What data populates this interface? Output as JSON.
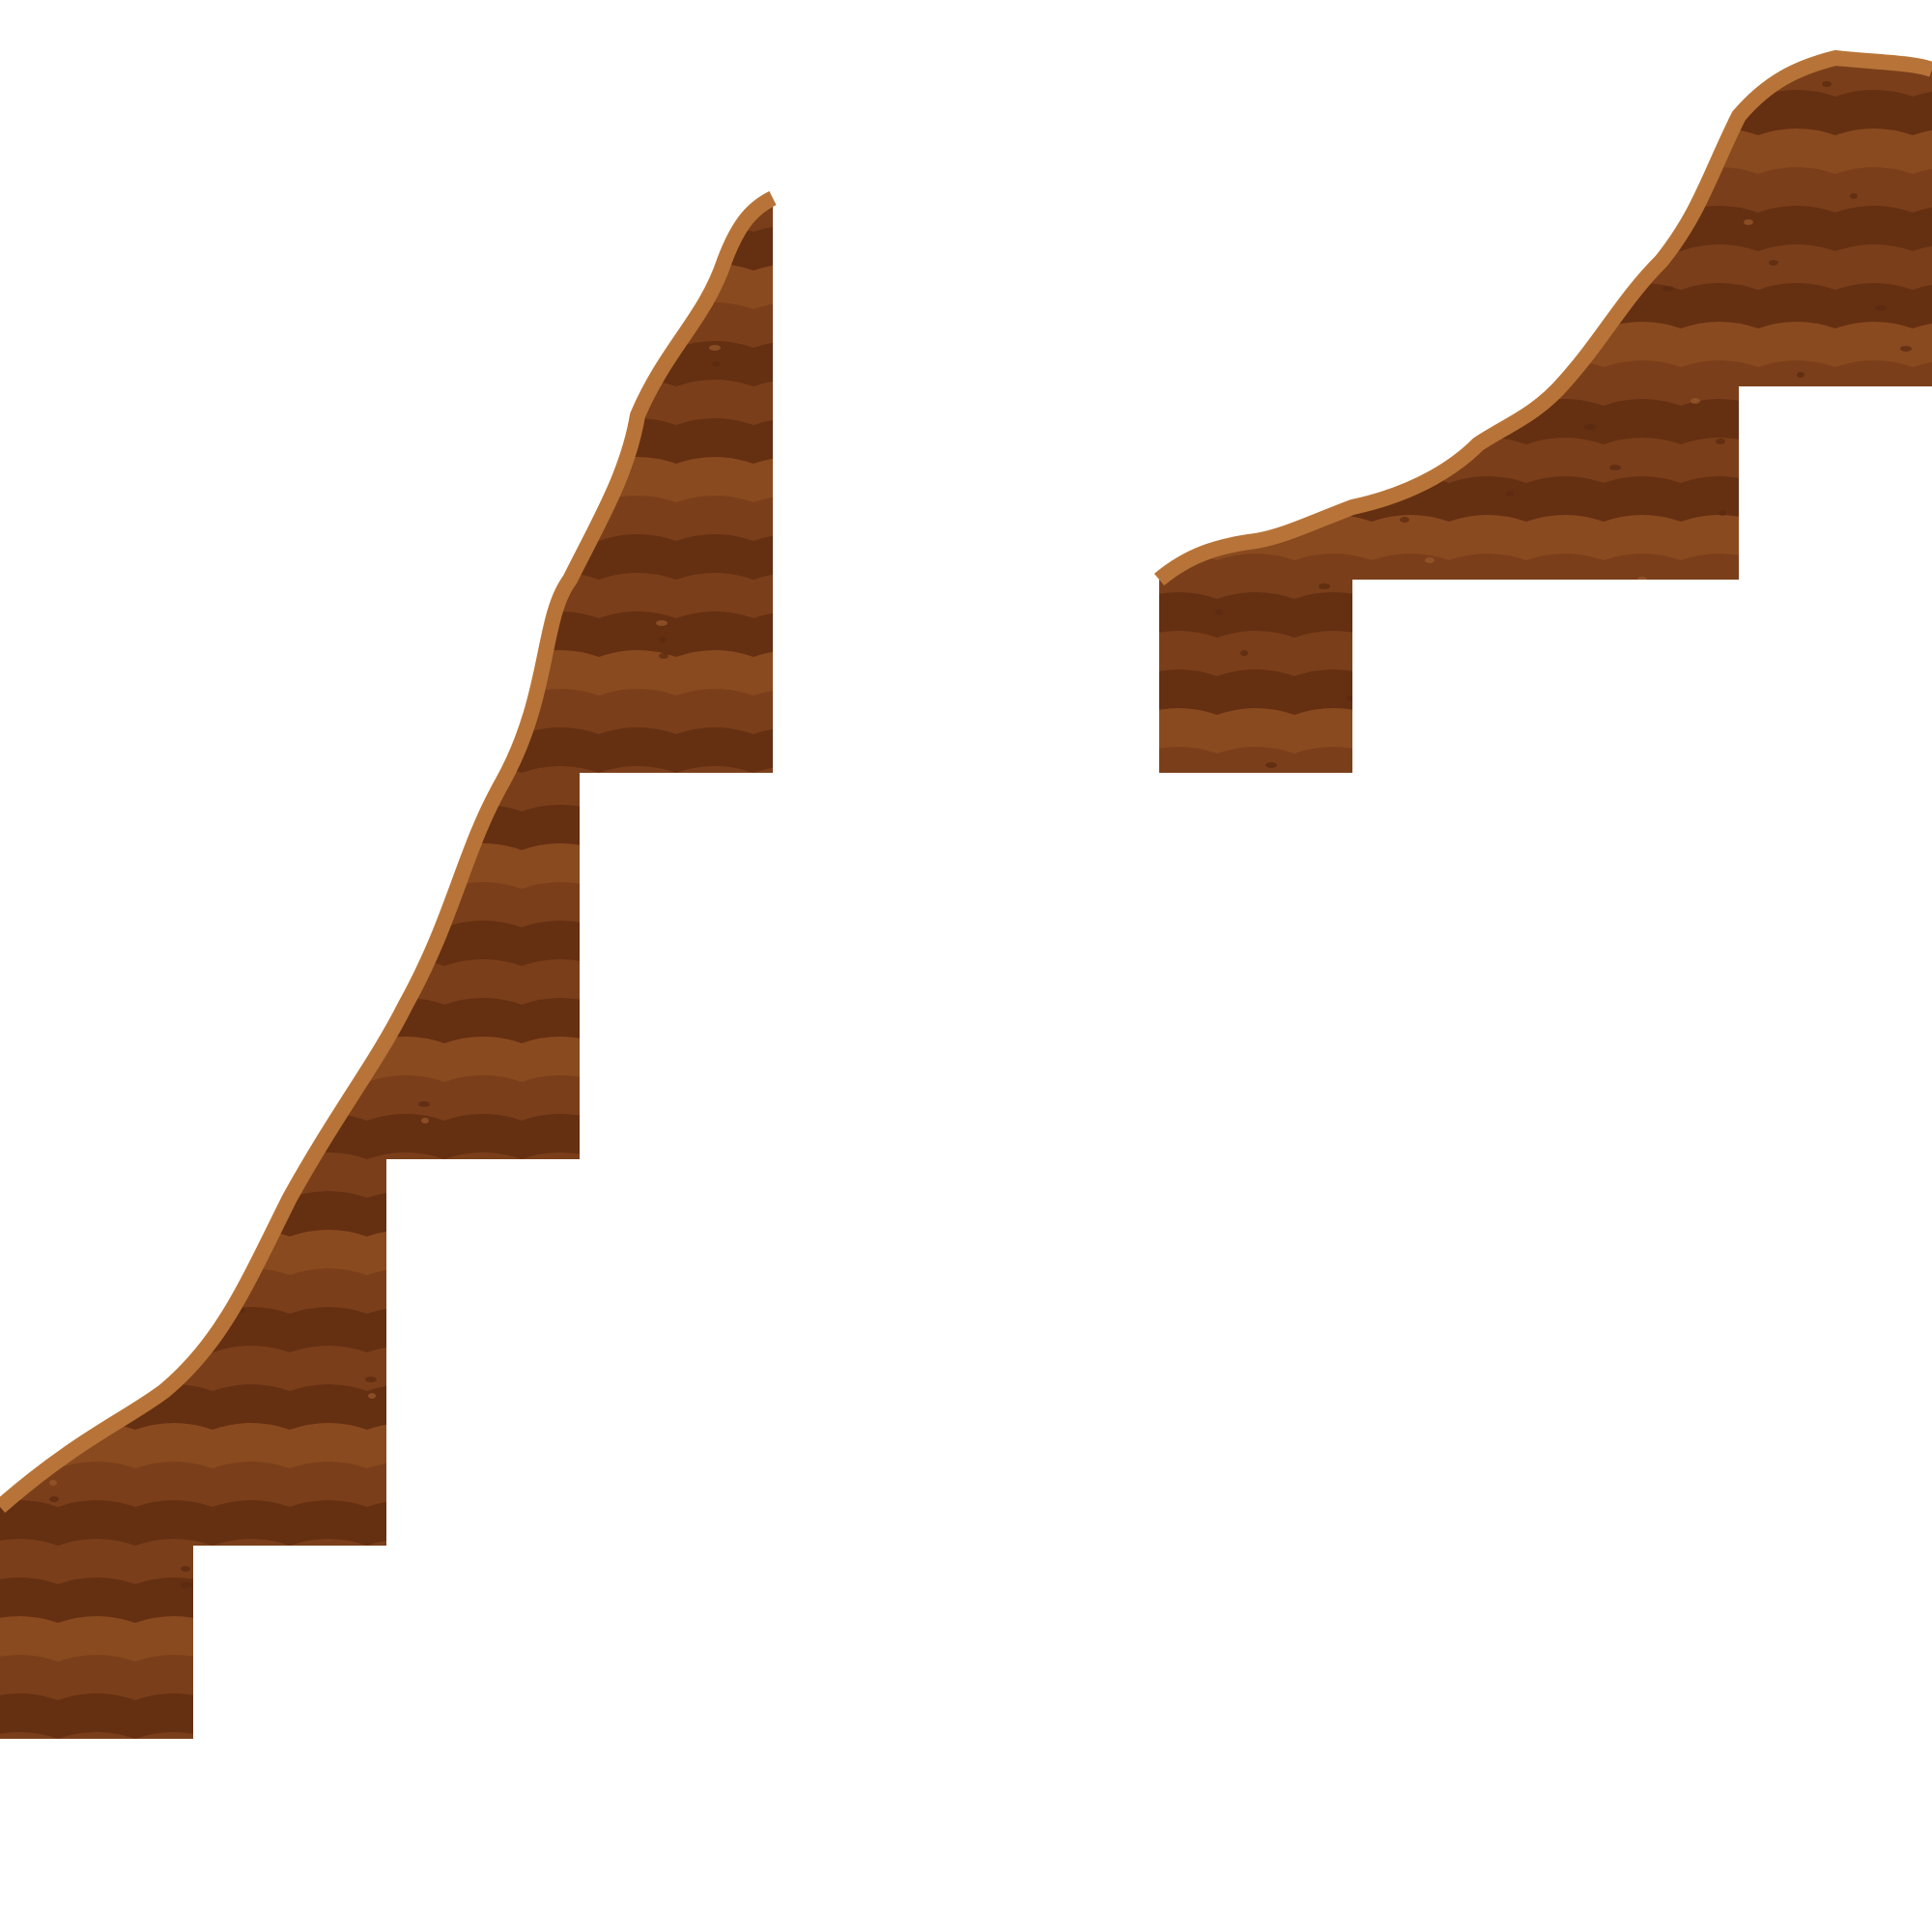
{
  "palette": {
    "background": "#ffffff",
    "rim_light": "#b87438",
    "rim_mid": "#a45d2b",
    "band_light": "#8a4a1f",
    "band_mid": "#7a3f1a",
    "band_dark": "#652f12",
    "speck": "#5a2a10",
    "fossil": "#9a5a2c"
  },
  "tiles": [
    {
      "name": "slope-tile-steep",
      "kind": "ground-slope",
      "steps": 4,
      "rise": "steep"
    },
    {
      "name": "slope-tile-gentle",
      "kind": "ground-slope",
      "steps": 3,
      "rise": "gentle"
    }
  ],
  "decor_icons": [
    "fossil-fish-icon",
    "shell-icon",
    "starfish-icon",
    "pebble-icon"
  ]
}
